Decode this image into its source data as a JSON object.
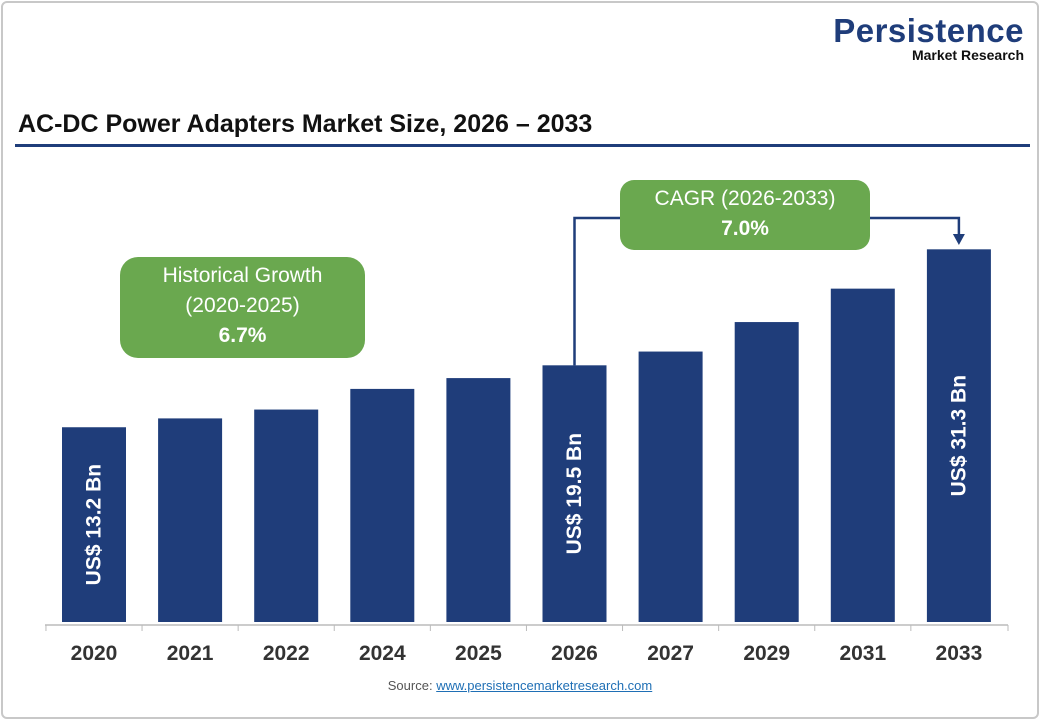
{
  "logo": {
    "name": "Persistence",
    "sub": "Market Research"
  },
  "title": "AC-DC Power Adapters Market Size, 2026 – 2033",
  "historical": {
    "label": "Historical Growth",
    "period": "(2020-2025)",
    "value": "6.7%"
  },
  "cagr": {
    "label": "CAGR (2026-2033)",
    "value": "7.0%"
  },
  "source": {
    "label": "Source:",
    "link": "www.persistencemarketresearch.com"
  },
  "colors": {
    "bar": "#1f3d7a",
    "box": "#6aa84f"
  },
  "chart_data": {
    "type": "bar",
    "categories": [
      "2020",
      "2021",
      "2022",
      "2024",
      "2025",
      "2026",
      "2027",
      "2029",
      "2031",
      "2033"
    ],
    "values": [
      13.2,
      14.1,
      15.0,
      17.1,
      18.2,
      19.5,
      20.9,
      23.9,
      27.3,
      31.3
    ],
    "data_labels": {
      "2020": "US$ 13.2 Bn",
      "2026": "US$ 19.5 Bn",
      "2033": "US$ 31.3 Bn"
    },
    "xlabel": "",
    "ylabel": "",
    "grid": false
  }
}
